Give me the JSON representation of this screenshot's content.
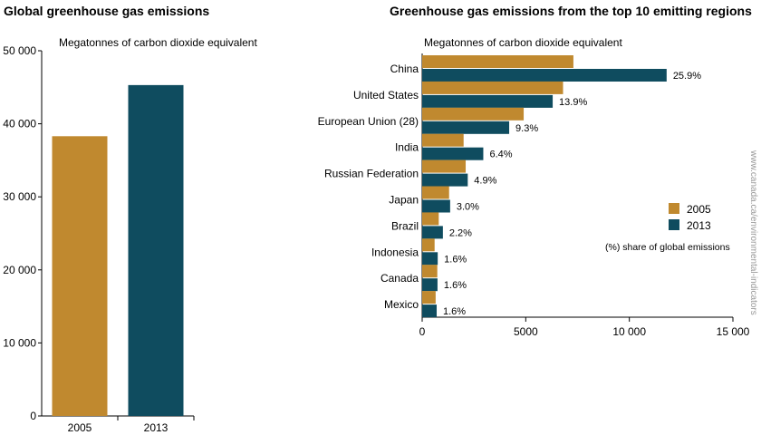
{
  "colors": {
    "y2005": "#c0892f",
    "y2013": "#0f4c5f",
    "source": "#9a9a9a"
  },
  "source_note": "www.canada.ca/environmental-indicators",
  "chart_data": [
    {
      "type": "bar",
      "title": "Global greenhouse gas emissions",
      "ylabel": "Megatonnes of carbon dioxide equivalent",
      "categories": [
        "2005",
        "2013"
      ],
      "values": [
        38300,
        45300
      ],
      "ylim": [
        0,
        50000
      ],
      "yticks": [
        {
          "value": 0,
          "label": "0"
        },
        {
          "value": 10000,
          "label": "10 000"
        },
        {
          "value": 20000,
          "label": "20 000"
        },
        {
          "value": 30000,
          "label": "30 000"
        },
        {
          "value": 40000,
          "label": "40 000"
        },
        {
          "value": 50000,
          "label": "50 000"
        }
      ],
      "grid": false
    },
    {
      "type": "bar",
      "orientation": "horizontal",
      "title": "Greenhouse gas emissions from the top 10 emitting regions",
      "xlabel": "Megatonnes of carbon dioxide equivalent",
      "categories": [
        "China",
        "United States",
        "European Union (28)",
        "India",
        "Russian Federation",
        "Japan",
        "Brazil",
        "Indonesia",
        "Canada",
        "Mexico"
      ],
      "series": [
        {
          "name": "2005",
          "values": [
            7300,
            6800,
            4900,
            2000,
            2100,
            1300,
            800,
            600,
            730,
            650
          ]
        },
        {
          "name": "2013",
          "values": [
            11800,
            6300,
            4200,
            2950,
            2200,
            1350,
            1000,
            750,
            740,
            700
          ]
        }
      ],
      "share_labels": [
        "25.9%",
        "13.9%",
        "9.3%",
        "6.4%",
        "4.9%",
        "3.0%",
        "2.2%",
        "1.6%",
        "1.6%",
        "1.6%"
      ],
      "xlim": [
        0,
        15000
      ],
      "xticks": [
        {
          "value": 0,
          "label": "0"
        },
        {
          "value": 5000,
          "label": "5000"
        },
        {
          "value": 10000,
          "label": "10 000"
        },
        {
          "value": 15000,
          "label": "15 000"
        }
      ],
      "legend": {
        "items": [
          "2005",
          "2013"
        ],
        "note": "(%) share of global emissions",
        "placement": "right"
      },
      "grid": false
    }
  ]
}
